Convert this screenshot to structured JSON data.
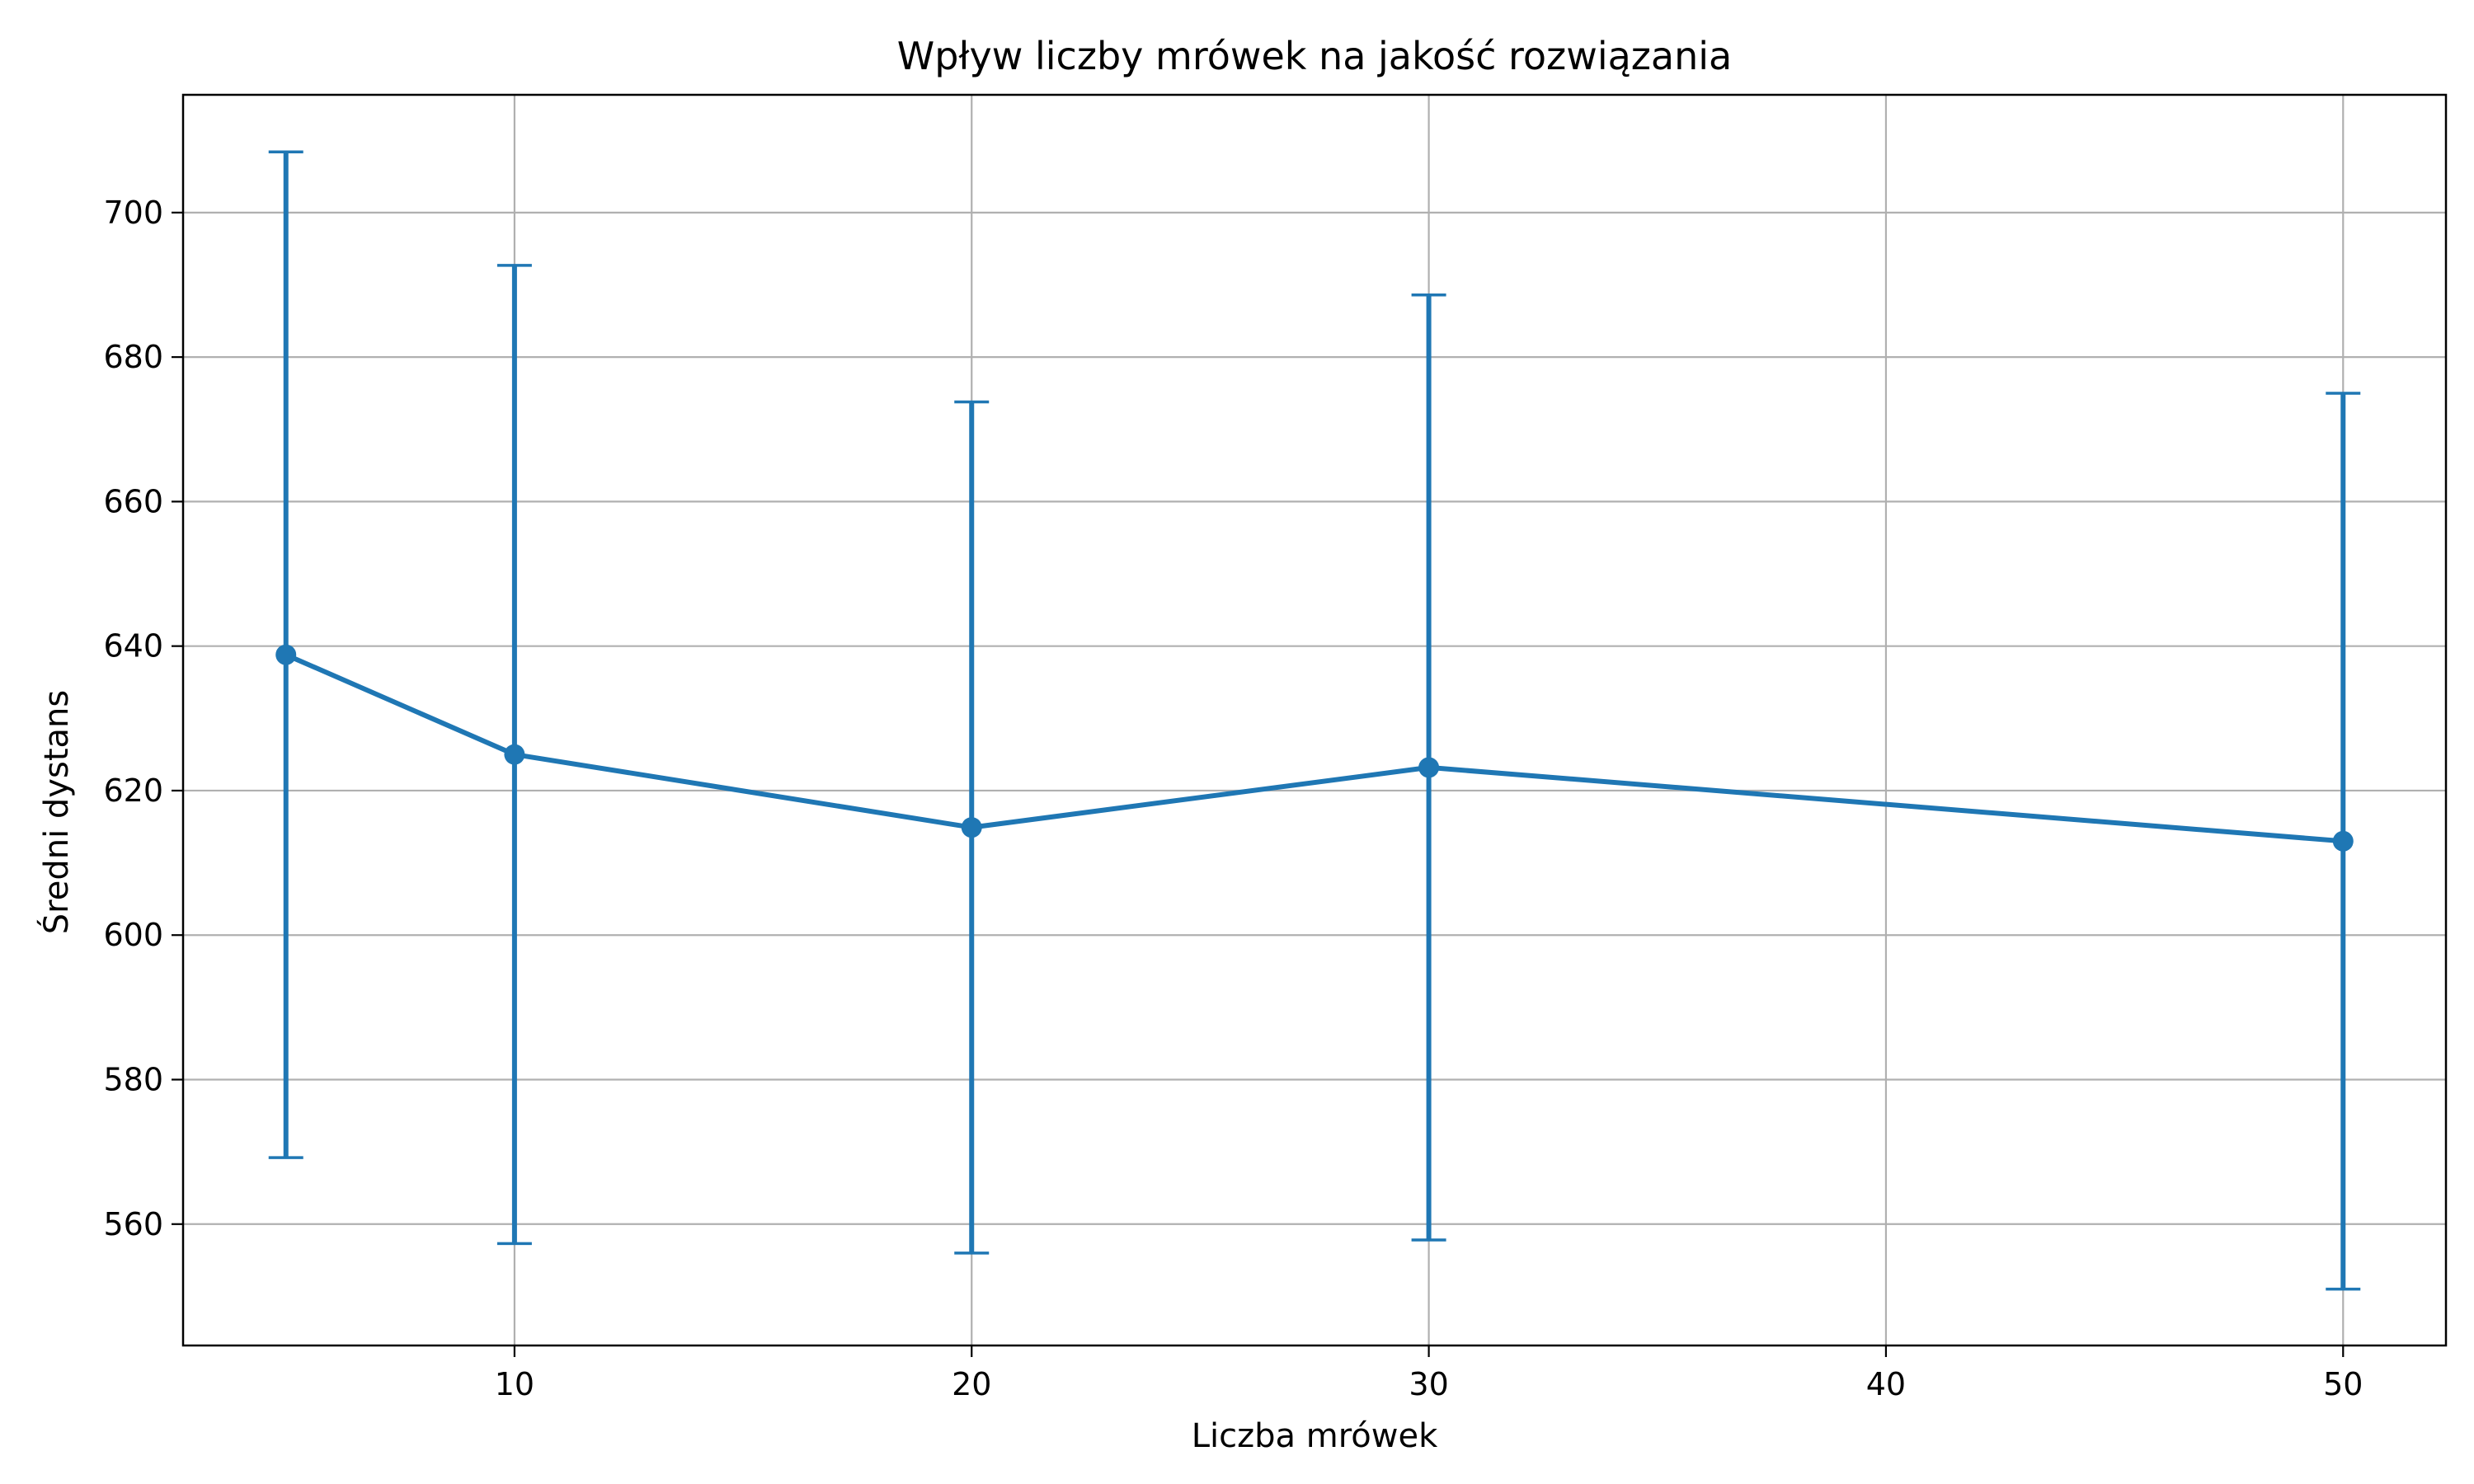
{
  "chart_data": {
    "type": "line",
    "title": "Wpływ liczby mrówek na jakość rozwiązania",
    "xlabel": "Liczba mrówek",
    "ylabel": "Średni dystans",
    "x": [
      5,
      10,
      20,
      30,
      50
    ],
    "series": [
      {
        "values": [
          638.8,
          625.0,
          614.9,
          623.2,
          613.0
        ],
        "error_lower": [
          569.2,
          557.3,
          556.0,
          557.8,
          551.0
        ],
        "error_upper": [
          708.4,
          692.7,
          673.8,
          688.6,
          675.0
        ]
      }
    ],
    "xlim": [
      2.75,
      52.25
    ],
    "ylim": [
      543.2,
      716.3
    ],
    "xticks": [
      "10",
      "20",
      "30",
      "40",
      "50"
    ],
    "yticks": [
      "560",
      "580",
      "600",
      "620",
      "640",
      "660",
      "680",
      "700"
    ],
    "grid": true,
    "legend": false,
    "color": "#1f77b4",
    "grid_color": "#b0b0b0"
  }
}
